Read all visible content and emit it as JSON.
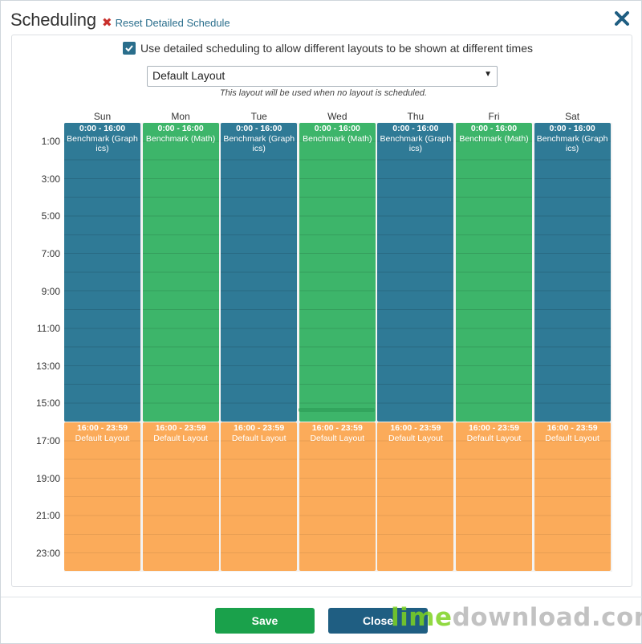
{
  "dialog": {
    "title": "Scheduling",
    "reset_label": "Reset Detailed Schedule"
  },
  "options": {
    "detailed_checked": true,
    "detailed_label": "Use detailed scheduling to allow different layouts to be shown at different times",
    "default_layout": "Default Layout",
    "default_layout_hint": "This layout will be used when no layout is scheduled."
  },
  "days": [
    "Sun",
    "Mon",
    "Tue",
    "Wed",
    "Thu",
    "Fri",
    "Sat"
  ],
  "time_labels": [
    "1:00",
    "3:00",
    "5:00",
    "7:00",
    "9:00",
    "11:00",
    "13:00",
    "15:00",
    "17:00",
    "19:00",
    "21:00",
    "23:00"
  ],
  "schedule": [
    [
      {
        "start": 0,
        "end": 16,
        "range": "0:00 - 16:00",
        "layout": "Benchmark (Graphics)",
        "kind": "graphics"
      },
      {
        "start": 16,
        "end": 24,
        "range": "16:00 - 23:59",
        "layout": "Default Layout",
        "kind": "default"
      }
    ],
    [
      {
        "start": 0,
        "end": 16,
        "range": "0:00 - 16:00",
        "layout": "Benchmark (Math)",
        "kind": "math"
      },
      {
        "start": 16,
        "end": 24,
        "range": "16:00 - 23:59",
        "layout": "Default Layout",
        "kind": "default"
      }
    ],
    [
      {
        "start": 0,
        "end": 16,
        "range": "0:00 - 16:00",
        "layout": "Benchmark (Graphics)",
        "kind": "graphics"
      },
      {
        "start": 16,
        "end": 24,
        "range": "16:00 - 23:59",
        "layout": "Default Layout",
        "kind": "default"
      }
    ],
    [
      {
        "start": 0,
        "end": 16,
        "range": "0:00 - 16:00",
        "layout": "Benchmark (Math)",
        "kind": "math"
      },
      {
        "start": 16,
        "end": 24,
        "range": "16:00 - 23:59",
        "layout": "Default Layout",
        "kind": "default"
      }
    ],
    [
      {
        "start": 0,
        "end": 16,
        "range": "0:00 - 16:00",
        "layout": "Benchmark (Graphics)",
        "kind": "graphics"
      },
      {
        "start": 16,
        "end": 24,
        "range": "16:00 - 23:59",
        "layout": "Default Layout",
        "kind": "default"
      }
    ],
    [
      {
        "start": 0,
        "end": 16,
        "range": "0:00 - 16:00",
        "layout": "Benchmark (Math)",
        "kind": "math"
      },
      {
        "start": 16,
        "end": 24,
        "range": "16:00 - 23:59",
        "layout": "Default Layout",
        "kind": "default"
      }
    ],
    [
      {
        "start": 0,
        "end": 16,
        "range": "0:00 - 16:00",
        "layout": "Benchmark (Graphics)",
        "kind": "graphics"
      },
      {
        "start": 16,
        "end": 24,
        "range": "16:00 - 23:59",
        "layout": "Default Layout",
        "kind": "default"
      }
    ]
  ],
  "colors": {
    "graphics": "#2f7a96",
    "math": "#3db56a",
    "default": "#fbab5a",
    "save": "#1aa14b",
    "close": "#1f5e82"
  },
  "footer": {
    "save_label": "Save",
    "close_label": "Close"
  },
  "watermark": {
    "part1": "lime",
    "part2": "download.com"
  }
}
